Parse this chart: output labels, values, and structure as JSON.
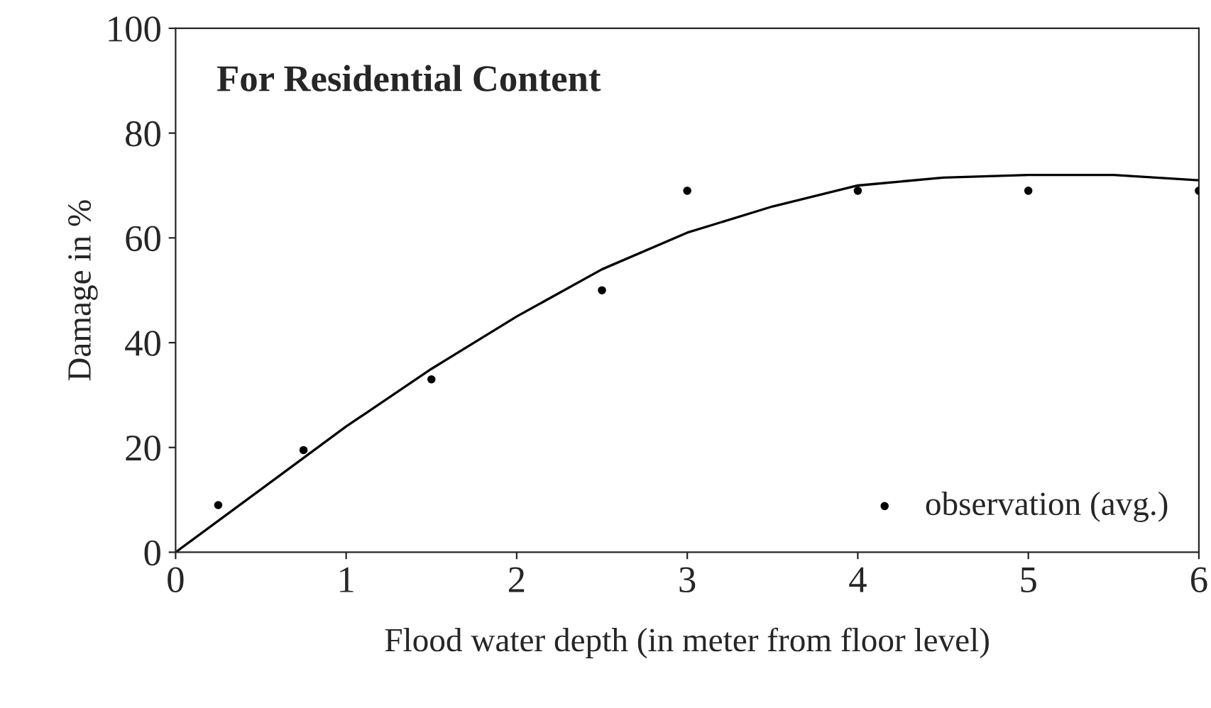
{
  "chart_data": {
    "type": "scatter",
    "title": "For Residential Content",
    "xlabel": "Flood water depth (in meter from floor level)",
    "ylabel": "Damage in %",
    "xlim": [
      0,
      6
    ],
    "ylim": [
      0,
      100
    ],
    "xticks": [
      0,
      1,
      2,
      3,
      4,
      5,
      6
    ],
    "yticks": [
      0,
      20,
      40,
      60,
      80,
      100
    ],
    "grid": false,
    "legend": "bottom right",
    "series": [
      {
        "name": "observation (avg.)",
        "marker": "circle",
        "color": "#000000",
        "x": [
          0.25,
          0.75,
          1.5,
          2.5,
          3,
          4,
          5,
          6
        ],
        "values": [
          9,
          19.5,
          33,
          50,
          69,
          69,
          69,
          69
        ]
      },
      {
        "type": "line",
        "marker": "none",
        "line_style": "solid",
        "color": "#000000",
        "x": [
          0,
          0.5,
          1,
          1.5,
          2,
          2.5,
          3,
          3.5,
          4,
          4.5,
          5,
          5.5,
          6
        ],
        "values": [
          0,
          12,
          24,
          35,
          45,
          54,
          61,
          66,
          70,
          71.5,
          72,
          72,
          71
        ]
      }
    ]
  }
}
